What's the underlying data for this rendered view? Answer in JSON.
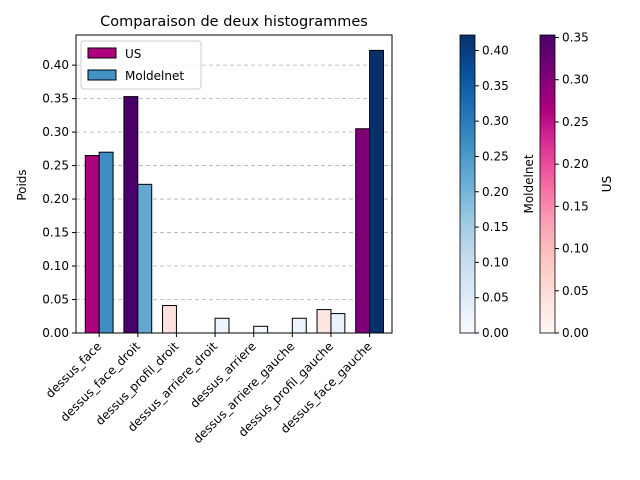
{
  "chart_data": {
    "type": "bar",
    "title": "Comparaison de deux histogrammes",
    "xlabel": "",
    "ylabel": "Poids",
    "ylim": [
      0,
      0.445
    ],
    "yticks": [
      "0.00",
      "0.05",
      "0.10",
      "0.15",
      "0.20",
      "0.25",
      "0.30",
      "0.35",
      "0.40"
    ],
    "grid": "y-dashed",
    "legend_position": "top-left",
    "categories": [
      "dessus_face",
      "dessus_face_droit",
      "dessus_profil_droit",
      "dessus_arriere_droit",
      "dessus_arriere",
      "dessus_arriere_gauche",
      "dessus_profil_gauche",
      "dessus_face_gauche"
    ],
    "series": [
      {
        "name": "US",
        "values": [
          0.265,
          0.353,
          0.041,
          0.0,
          0.0,
          0.0,
          0.035,
          0.305
        ],
        "colormap": "RdPu",
        "legend_color": "#ae017e"
      },
      {
        "name": "Moldelnet",
        "values": [
          0.27,
          0.222,
          0.0,
          0.022,
          0.01,
          0.022,
          0.029,
          0.422
        ],
        "colormap": "Blues",
        "legend_color": "#4292c6"
      }
    ],
    "colorbars": [
      {
        "label": "Moldelnet",
        "colormap": "Blues",
        "range": [
          0,
          0.422
        ],
        "ticks": [
          "0.00",
          "0.05",
          "0.10",
          "0.15",
          "0.20",
          "0.25",
          "0.30",
          "0.35",
          "0.40"
        ]
      },
      {
        "label": "US",
        "colormap": "RdPu",
        "range": [
          0,
          0.353
        ],
        "ticks": [
          "0.00",
          "0.05",
          "0.10",
          "0.15",
          "0.20",
          "0.25",
          "0.30",
          "0.35"
        ]
      }
    ]
  }
}
